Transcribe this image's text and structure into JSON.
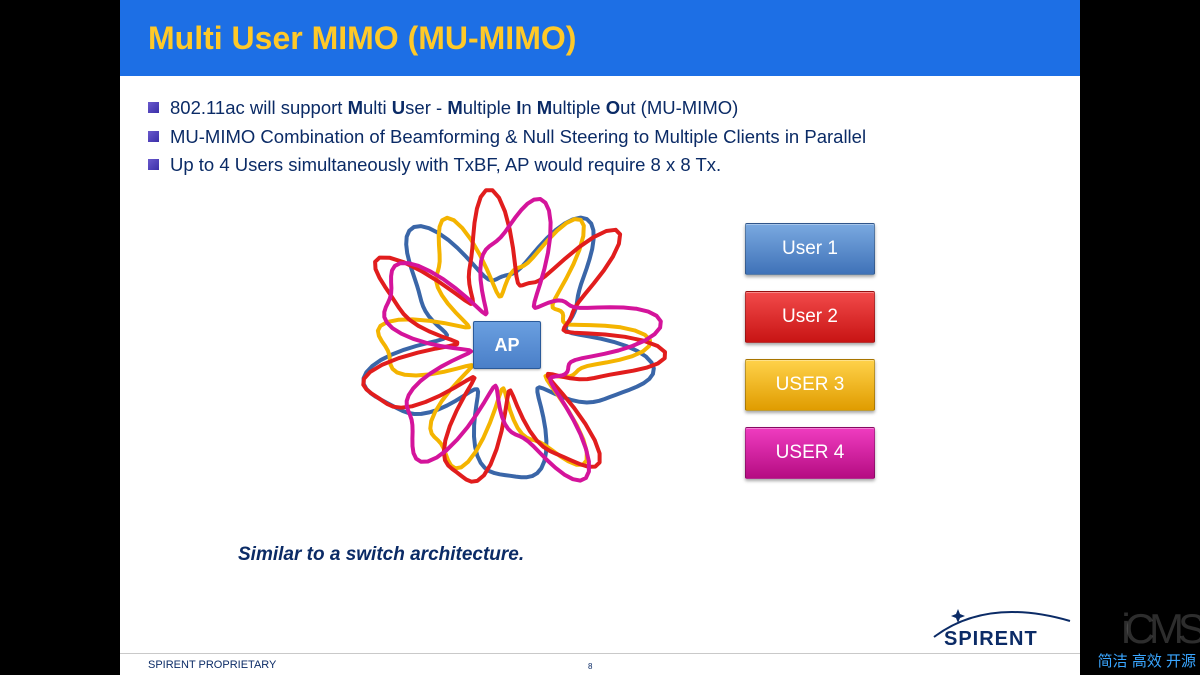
{
  "colors": {
    "title_bar_bg": "#1d6fe5",
    "title_text": "#ffc928",
    "body_text": "#0b2b66",
    "slide_bg": "#ffffff",
    "stage_bg": "#000000",
    "bullet_marker": "#3b2fa8"
  },
  "title": "Multi User MIMO (MU-MIMO)",
  "bullets": [
    {
      "pre": "802.11ac will support ",
      "bold_sequence": [
        [
          "M",
          "ulti "
        ],
        [
          "U",
          "ser - "
        ],
        [
          "M",
          "ultiple "
        ],
        [
          "I",
          "n "
        ],
        [
          "M",
          "ultiple "
        ],
        [
          "O",
          "ut "
        ]
      ],
      "post": "(MU-MIMO)"
    },
    {
      "plain": "MU-MIMO Combination of Beamforming & Null Steering to Multiple Clients in Parallel"
    },
    {
      "plain": "Up to 4 Users simultaneously with TxBF, AP would require 8 x 8 Tx."
    }
  ],
  "ap_label": "AP",
  "users": [
    {
      "label": "User 1",
      "fill": "#5186cb",
      "grad_top": "#7aa9e0",
      "grad_bot": "#3f72b8"
    },
    {
      "label": "User 2",
      "fill": "#e11d1d",
      "grad_top": "#f24a4a",
      "grad_bot": "#c81414"
    },
    {
      "label": "USER 3",
      "fill": "#f4b400",
      "grad_top": "#ffd24a",
      "grad_bot": "#e09c00"
    },
    {
      "label": "USER 4",
      "fill": "#d4149b",
      "grad_top": "#ef3cc0",
      "grad_bot": "#b50c82"
    }
  ],
  "lobes": {
    "stroke_width": 4,
    "colors": {
      "user1": "#3a66a8",
      "user2": "#e11d1d",
      "user3": "#f4b400",
      "user4": "#d4149b"
    }
  },
  "footnote": "Similar to a switch architecture.",
  "footer": "SPIRENT PROPRIETARY",
  "page_number": "8",
  "logo_text": "SPIRENT",
  "watermark": {
    "logo": "iCMS",
    "subtitle": "简洁 高效 开源"
  }
}
